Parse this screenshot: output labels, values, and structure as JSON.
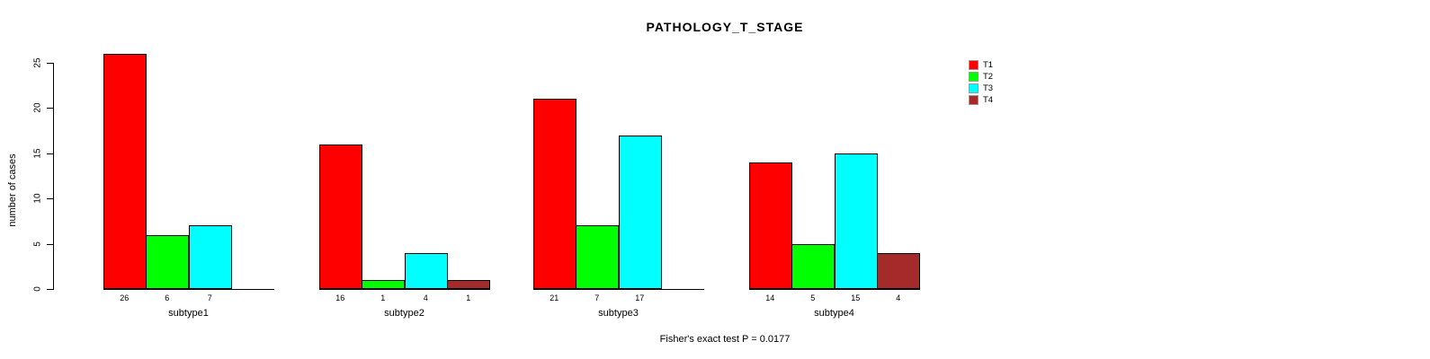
{
  "chart_data": {
    "type": "bar",
    "title": "PATHOLOGY_T_STAGE",
    "ylabel": "number of cases",
    "annotation": "Fisher's exact test P = 0.0177",
    "categories": [
      "subtype1",
      "subtype2",
      "subtype3",
      "subtype4"
    ],
    "series": [
      {
        "name": "T1",
        "color": "#FF0000",
        "values": [
          26,
          16,
          21,
          14
        ]
      },
      {
        "name": "T2",
        "color": "#00FF00",
        "values": [
          6,
          1,
          7,
          5
        ]
      },
      {
        "name": "T3",
        "color": "#00FFFF",
        "values": [
          7,
          4,
          17,
          15
        ]
      },
      {
        "name": "T4",
        "color": "#A52A2A",
        "values": [
          0,
          1,
          0,
          4
        ]
      }
    ],
    "yticks": [
      0,
      5,
      10,
      15,
      20,
      25
    ],
    "ylim": [
      0,
      26
    ],
    "bar_labels": "each bar's value printed below axis; zero-value bars drawn and labeled as nothing",
    "legend_position": "top-right",
    "grid": false,
    "background_color": "#ffffff",
    "axis_color": "#000000"
  }
}
